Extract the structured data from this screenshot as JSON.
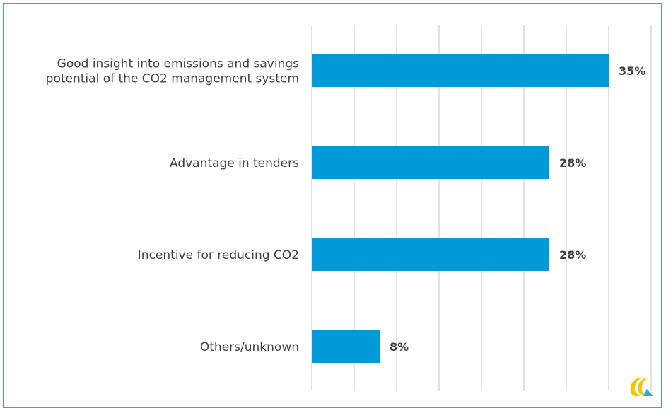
{
  "chart_data": {
    "type": "bar",
    "orientation": "horizontal",
    "categories": [
      [
        "Good insight into emissions and savings",
        "potential of the CO2 management system"
      ],
      [
        "Advantage in tenders"
      ],
      [
        "Incentive for reducing CO2"
      ],
      [
        "Others/unknown"
      ]
    ],
    "values": [
      35,
      28,
      28,
      8
    ],
    "value_labels": [
      "35%",
      "28%",
      "28%",
      "8%"
    ],
    "xlim": [
      0,
      40
    ],
    "grid": true,
    "legend": "none",
    "title": "",
    "xlabel": "",
    "ylabel": ""
  },
  "colors": {
    "bar": "#009ad9",
    "grid": "#d9d9d9",
    "frame": "#3aa3d9",
    "text": "#404040",
    "logo_yellow": "#f2c600",
    "logo_blue": "#2aa6df"
  },
  "logo": {
    "icon": "brand-logo-icon"
  }
}
